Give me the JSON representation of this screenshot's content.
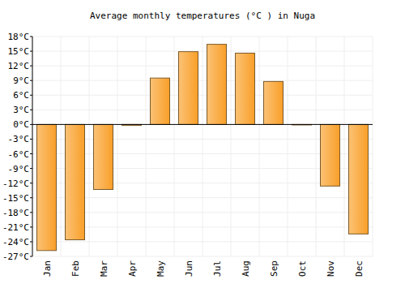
{
  "chart_data": {
    "type": "bar",
    "title": "Average monthly temperatures (°C ) in Nuga",
    "categories": [
      "Jan",
      "Feb",
      "Mar",
      "Apr",
      "May",
      "Jun",
      "Jul",
      "Aug",
      "Sep",
      "Oct",
      "Nov",
      "Dec"
    ],
    "values": [
      -25.8,
      -23.6,
      -13.3,
      -0.2,
      9.5,
      14.9,
      16.4,
      14.6,
      8.8,
      -0.1,
      -12.6,
      -22.4
    ],
    "color": "#f9a02a",
    "ylim": [
      -27,
      18
    ],
    "yticks": [
      {
        "value": -27,
        "label": "-27°C"
      },
      {
        "value": -24,
        "label": "-24°C"
      },
      {
        "value": -21,
        "label": "-21°C"
      },
      {
        "value": -18,
        "label": "-18°C"
      },
      {
        "value": -15,
        "label": "-15°C"
      },
      {
        "value": -12,
        "label": "-12°C"
      },
      {
        "value": -9,
        "label": "-9°C"
      },
      {
        "value": -6,
        "label": "-6°C"
      },
      {
        "value": -3,
        "label": "-3°C"
      },
      {
        "value": 0,
        "label": "0°C"
      },
      {
        "value": 3,
        "label": "3°C"
      },
      {
        "value": 6,
        "label": "6°C"
      },
      {
        "value": 9,
        "label": "9°C"
      },
      {
        "value": 12,
        "label": "12°C"
      },
      {
        "value": 15,
        "label": "15°C"
      },
      {
        "value": 18,
        "label": "18°C"
      }
    ],
    "grid": true
  }
}
